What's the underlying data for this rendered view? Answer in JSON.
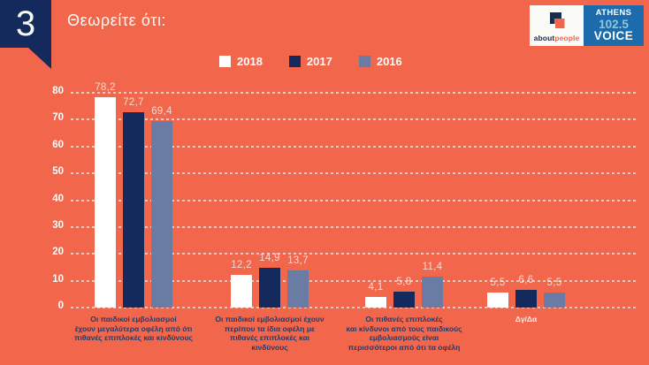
{
  "slide": {
    "number": "3",
    "title": "Θεωρείτε ότι:"
  },
  "logos": {
    "aboutpeople": {
      "about": "about",
      "people": "people"
    },
    "athens_voice": {
      "station": "ATHENS",
      "frequency": "102.5",
      "brand": "VOICE"
    }
  },
  "colors": {
    "background": "#F2664B",
    "navy": "#142A5C",
    "slate_blue": "#6B7CA4",
    "bar_white": "#FFFFFF",
    "athens_blue": "#1C6BAD",
    "athens_light_blue": "#8FC4DC",
    "category_label": "#233C6B"
  },
  "chart_data": {
    "type": "bar",
    "title": "Θεωρείτε ότι:",
    "legend_position": "top",
    "grid": "dashed-horizontal",
    "ylim": [
      0,
      80
    ],
    "yticks": [
      0,
      10,
      20,
      30,
      40,
      50,
      60,
      70,
      80
    ],
    "decimal_separator": ",",
    "categories": [
      "Οι παιδικοί εμβολιασμοί\nέχουν μεγαλύτερα οφέλη από ότι\nπιθανές επιπλοκές και κινδύνους",
      "Οι παιδικοί εμβολιασμοί έχουν\nπερίπου τα ίδια οφέλη με\nπιθανές επιπλοκές και\nκινδύνους",
      "Οι πιθανές επιπλοκές\nκαι κίνδυνοι από τους παιδικούς\nεμβολιασμούς είναι\nπερισσότεροι από ότι τα οφέλη",
      "Δγ/Δα"
    ],
    "category_styles": [
      "dark",
      "dark",
      "dark",
      "light"
    ],
    "series": [
      {
        "name": "2018",
        "color": "#FFFFFF",
        "values": [
          78.2,
          12.2,
          4.1,
          5.5
        ]
      },
      {
        "name": "2017",
        "color": "#142A5C",
        "values": [
          72.7,
          14.9,
          5.8,
          6.6
        ]
      },
      {
        "name": "2016",
        "color": "#6B7CA4",
        "values": [
          69.4,
          13.7,
          11.4,
          5.5
        ]
      }
    ]
  }
}
